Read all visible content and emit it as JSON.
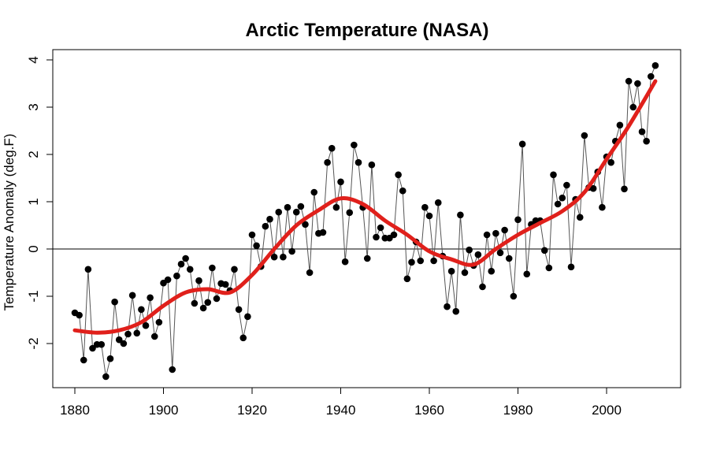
{
  "chart_data": {
    "type": "line",
    "title": "Arctic Temperature (NASA)",
    "xlabel": "",
    "ylabel": "Temperature Anomaly (deg.F)",
    "xlim": [
      1875,
      2016
    ],
    "ylim": [
      -3,
      4.2
    ],
    "xticks": [
      1880,
      1900,
      1920,
      1940,
      1960,
      1980,
      2000
    ],
    "yticks": [
      -2,
      -1,
      0,
      1,
      2,
      3,
      4
    ],
    "reference_line_y": 0,
    "grid": false,
    "colors": {
      "points": "#000000",
      "connector": "#555555",
      "smooth": "#e0201b",
      "zero_line": "#000000"
    },
    "series": [
      {
        "type": "line+markers",
        "x_start": 1880,
        "values": [
          -1.35,
          -1.4,
          -2.35,
          -0.43,
          -2.1,
          -2.02,
          -2.02,
          -2.7,
          -2.32,
          -1.12,
          -1.92,
          -2.0,
          -1.8,
          -0.98,
          -1.78,
          -1.28,
          -1.62,
          -1.03,
          -1.85,
          -1.55,
          -0.72,
          -0.65,
          -2.55,
          -0.57,
          -0.32,
          -0.2,
          -0.43,
          -1.15,
          -0.67,
          -1.25,
          -1.13,
          -0.4,
          -1.05,
          -0.73,
          -0.75,
          -0.88,
          -0.43,
          -1.28,
          -1.88,
          -1.43,
          0.3,
          0.07,
          -0.37,
          0.48,
          0.63,
          -0.17,
          0.78,
          -0.17,
          0.88,
          -0.05,
          0.78,
          0.9,
          0.52,
          -0.5,
          1.2,
          0.33,
          0.35,
          1.83,
          2.13,
          0.88,
          1.42,
          -0.27,
          0.77,
          2.2,
          1.83,
          0.88,
          -0.2,
          1.78,
          0.25,
          0.45,
          0.23,
          0.23,
          0.3,
          1.57,
          1.23,
          -0.63,
          -0.28,
          0.15,
          -0.25,
          0.88,
          0.7,
          -0.25,
          0.98,
          -0.15,
          -1.22,
          -0.47,
          -1.32,
          0.72,
          -0.5,
          -0.02,
          -0.35,
          -0.12,
          -0.8,
          0.3,
          -0.47,
          0.33,
          -0.08,
          0.4,
          -0.2,
          -1.0,
          0.62,
          2.22,
          -0.53,
          0.52,
          0.6,
          0.6,
          -0.03,
          -0.4,
          1.57,
          0.95,
          1.08,
          1.35,
          -0.38,
          1.05,
          0.67,
          2.4,
          1.3,
          1.28,
          1.63,
          0.88,
          1.95,
          1.83,
          2.28,
          2.62,
          1.27,
          3.55,
          3.0,
          3.5,
          2.48,
          2.28,
          3.65,
          3.88
        ]
      },
      {
        "type": "smooth",
        "x": [
          1880,
          1885,
          1890,
          1895,
          1900,
          1905,
          1910,
          1915,
          1920,
          1925,
          1930,
          1935,
          1940,
          1945,
          1950,
          1955,
          1960,
          1965,
          1970,
          1975,
          1980,
          1985,
          1990,
          1995,
          2000,
          2005,
          2011
        ],
        "values": [
          -1.72,
          -1.77,
          -1.72,
          -1.55,
          -1.2,
          -0.92,
          -0.85,
          -0.92,
          -0.55,
          0.0,
          0.5,
          0.82,
          1.07,
          0.95,
          0.6,
          0.3,
          -0.05,
          -0.22,
          -0.33,
          0.0,
          0.3,
          0.55,
          0.8,
          1.2,
          1.9,
          2.6,
          3.55
        ]
      }
    ]
  }
}
